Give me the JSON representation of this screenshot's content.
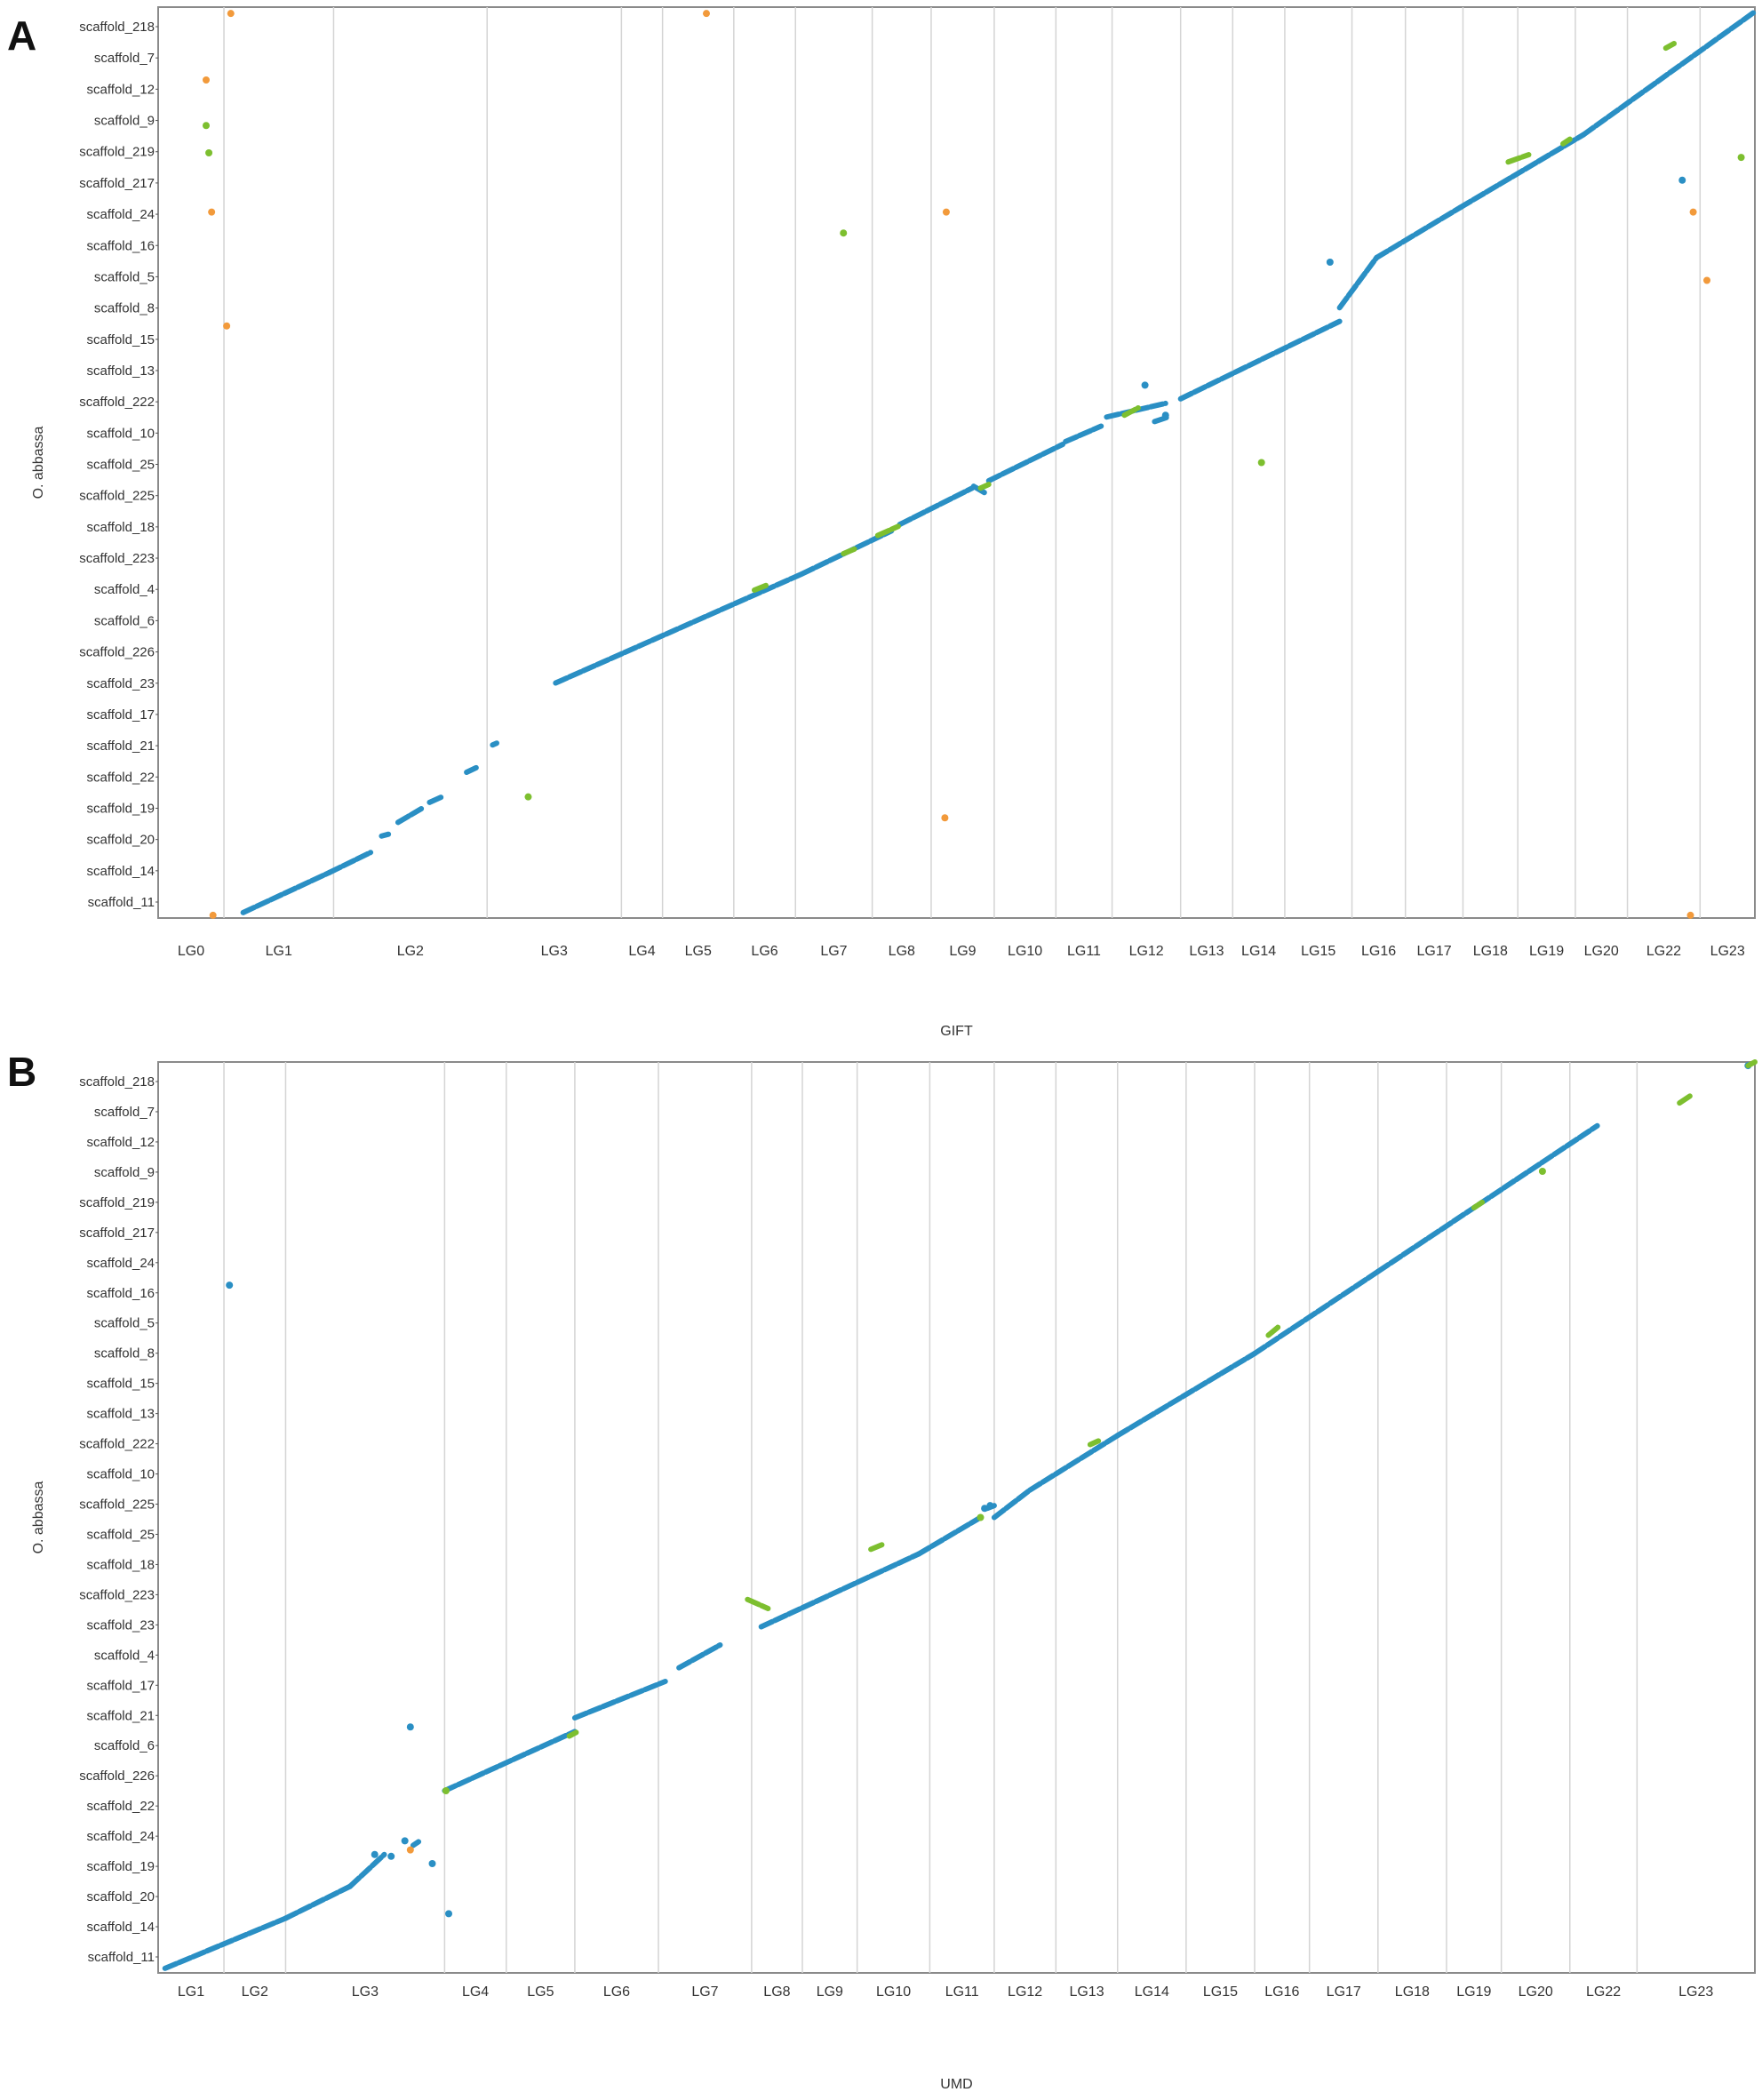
{
  "figure": {
    "panels": [
      {
        "letter": "A",
        "xlabel": "GIFT",
        "ylabel": "O. abbassa",
        "x_ticks": [
          "LG0",
          "LG1",
          "LG2",
          "LG3",
          "LG4",
          "LG5",
          "LG6",
          "LG7",
          "LG8",
          "LG9",
          "LG10",
          "LG11",
          "LG12",
          "LG13",
          "LG14",
          "LG15",
          "LG16",
          "LG17",
          "LG18",
          "LG19",
          "LG20",
          "LG22",
          "LG23"
        ],
        "y_ticks": [
          "scaffold_218",
          "scaffold_7",
          "scaffold_12",
          "scaffold_9",
          "scaffold_219",
          "scaffold_217",
          "scaffold_24",
          "scaffold_16",
          "scaffold_5",
          "scaffold_8",
          "scaffold_15",
          "scaffold_13",
          "scaffold_222",
          "scaffold_10",
          "scaffold_25",
          "scaffold_225",
          "scaffold_18",
          "scaffold_223",
          "scaffold_4",
          "scaffold_6",
          "scaffold_226",
          "scaffold_23",
          "scaffold_17",
          "scaffold_21",
          "scaffold_22",
          "scaffold_19",
          "scaffold_20",
          "scaffold_14",
          "scaffold_11"
        ]
      },
      {
        "letter": "B",
        "xlabel": "UMD",
        "ylabel": "O. abbassa",
        "x_ticks": [
          "LG1",
          "LG2",
          "LG3",
          "LG4",
          "LG5",
          "LG6",
          "LG7",
          "LG8",
          "LG9",
          "LG10",
          "LG11",
          "LG12",
          "LG13",
          "LG14",
          "LG15",
          "LG16",
          "LG17",
          "LG18",
          "LG19",
          "LG20",
          "LG22",
          "LG23"
        ],
        "y_ticks": [
          "scaffold_218",
          "scaffold_7",
          "scaffold_12",
          "scaffold_9",
          "scaffold_219",
          "scaffold_217",
          "scaffold_24",
          "scaffold_16",
          "scaffold_5",
          "scaffold_8",
          "scaffold_15",
          "scaffold_13",
          "scaffold_222",
          "scaffold_10",
          "scaffold_225",
          "scaffold_25",
          "scaffold_18",
          "scaffold_223",
          "scaffold_23",
          "scaffold_4",
          "scaffold_17",
          "scaffold_21",
          "scaffold_6",
          "scaffold_226",
          "scaffold_22",
          "scaffold_24",
          "scaffold_19",
          "scaffold_20",
          "scaffold_14",
          "scaffold_11"
        ]
      }
    ]
  },
  "colors": {
    "main": "#2a8fc4",
    "inverted": "#7dbf2f",
    "outlier": "#f29a3b",
    "grid": "#d4d4d4",
    "frame": "#8a8a8a"
  },
  "chart_data": [
    {
      "type": "scatter",
      "title": "",
      "xlabel": "GIFT",
      "ylabel": "O. abbassa",
      "grid": true,
      "x_categories": [
        "LG0",
        "LG1",
        "LG2",
        "LG3",
        "LG4",
        "LG5",
        "LG6",
        "LG7",
        "LG8",
        "LG9",
        "LG10",
        "LG11",
        "LG12",
        "LG13",
        "LG14",
        "LG15",
        "LG16",
        "LG17",
        "LG18",
        "LG19",
        "LG20",
        "LG22",
        "LG23"
      ],
      "x_boundaries": [
        0,
        0.048,
        0.128,
        0.24,
        0.338,
        0.368,
        0.42,
        0.465,
        0.521,
        0.564,
        0.61,
        0.655,
        0.696,
        0.746,
        0.784,
        0.822,
        0.871,
        0.91,
        0.952,
        0.992,
        1.034,
        1.072,
        1.125,
        1.165
      ],
      "y_categories": [
        "scaffold_218",
        "scaffold_7",
        "scaffold_12",
        "scaffold_9",
        "scaffold_219",
        "scaffold_217",
        "scaffold_24",
        "scaffold_16",
        "scaffold_5",
        "scaffold_8",
        "scaffold_15",
        "scaffold_13",
        "scaffold_222",
        "scaffold_10",
        "scaffold_25",
        "scaffold_225",
        "scaffold_18",
        "scaffold_223",
        "scaffold_4",
        "scaffold_6",
        "scaffold_226",
        "scaffold_23",
        "scaffold_17",
        "scaffold_21",
        "scaffold_22",
        "scaffold_19",
        "scaffold_20",
        "scaffold_14",
        "scaffold_11"
      ],
      "xlim": [
        0,
        1.165
      ],
      "ylim": [
        0,
        1.0
      ],
      "series": [
        {
          "name": "",
          "segments": [
            [
              0.062,
              0.006,
              0.125,
              0.05
            ],
            [
              0.125,
              0.05,
              0.155,
              0.072
            ],
            [
              0.163,
              0.09,
              0.168,
              0.092
            ],
            [
              0.175,
              0.105,
              0.192,
              0.12
            ],
            [
              0.198,
              0.127,
              0.207,
              0.133
            ],
            [
              0.225,
              0.16,
              0.232,
              0.165
            ],
            [
              0.244,
              0.19,
              0.247,
              0.192
            ],
            [
              0.29,
              0.258,
              0.47,
              0.378
            ],
            [
              0.47,
              0.378,
              0.535,
              0.425
            ],
            [
              0.541,
              0.432,
              0.594,
              0.472
            ],
            [
              0.595,
              0.474,
              0.604,
              0.466
            ],
            [
              0.606,
              0.48,
              0.66,
              0.52
            ],
            [
              0.662,
              0.523,
              0.688,
              0.54
            ],
            [
              0.692,
              0.55,
              0.735,
              0.565
            ],
            [
              0.727,
              0.545,
              0.737,
              0.55
            ],
            [
              0.746,
              0.57,
              0.862,
              0.655
            ],
            [
              0.862,
              0.67,
              0.889,
              0.725
            ],
            [
              0.889,
              0.725,
              0.95,
              0.78
            ],
            [
              0.95,
              0.78,
              1.04,
              0.86
            ],
            [
              1.04,
              0.86,
              1.165,
              0.995
            ]
          ],
          "points": [
            [
              0.735,
              0.552
            ],
            [
              0.72,
              0.585
            ],
            [
              0.855,
              0.72
            ],
            [
              1.112,
              0.81
            ]
          ]
        },
        {
          "name": "",
          "segments": [
            [
              0.525,
              0.42,
              0.54,
              0.43
            ],
            [
              0.435,
              0.36,
              0.445,
              0.366
            ],
            [
              0.5,
              0.4,
              0.508,
              0.405
            ],
            [
              0.6,
              0.472,
              0.606,
              0.476
            ],
            [
              0.705,
              0.552,
              0.715,
              0.56
            ],
            [
              0.985,
              0.83,
              1.0,
              0.838
            ],
            [
              1.025,
              0.85,
              1.03,
              0.855
            ],
            [
              1.1,
              0.955,
              1.106,
              0.96
            ]
          ],
          "points": [
            [
              0.037,
              0.84
            ],
            [
              0.035,
              0.87
            ],
            [
              0.27,
              0.133
            ],
            [
              0.5,
              0.752
            ],
            [
              1.155,
              0.835
            ],
            [
              0.805,
              0.5
            ]
          ]
        },
        {
          "name": "",
          "points": [
            [
              0.053,
              0.993
            ],
            [
              0.035,
              0.92
            ],
            [
              0.039,
              0.775
            ],
            [
              0.05,
              0.65
            ],
            [
              0.4,
              0.993
            ],
            [
              0.575,
              0.775
            ],
            [
              0.574,
              0.11
            ],
            [
              1.12,
              0.775
            ],
            [
              1.13,
              0.7
            ],
            [
              0.04,
              0.003
            ],
            [
              1.118,
              0.003
            ]
          ]
        }
      ]
    },
    {
      "type": "scatter",
      "title": "",
      "xlabel": "UMD",
      "ylabel": "O. abbassa",
      "grid": true,
      "x_categories": [
        "LG1",
        "LG2",
        "LG3",
        "LG4",
        "LG5",
        "LG6",
        "LG7",
        "LG8",
        "LG9",
        "LG10",
        "LG11",
        "LG12",
        "LG13",
        "LG14",
        "LG15",
        "LG16",
        "LG17",
        "LG18",
        "LG19",
        "LG20",
        "LG22",
        "LG23"
      ],
      "x_boundaries": [
        0,
        0.048,
        0.093,
        0.209,
        0.254,
        0.304,
        0.365,
        0.433,
        0.47,
        0.51,
        0.563,
        0.61,
        0.655,
        0.7,
        0.75,
        0.8,
        0.84,
        0.89,
        0.94,
        0.98,
        1.03,
        1.079,
        1.165
      ],
      "y_categories": [
        "scaffold_218",
        "scaffold_7",
        "scaffold_12",
        "scaffold_9",
        "scaffold_219",
        "scaffold_217",
        "scaffold_24",
        "scaffold_16",
        "scaffold_5",
        "scaffold_8",
        "scaffold_15",
        "scaffold_13",
        "scaffold_222",
        "scaffold_10",
        "scaffold_225",
        "scaffold_25",
        "scaffold_18",
        "scaffold_223",
        "scaffold_23",
        "scaffold_4",
        "scaffold_17",
        "scaffold_21",
        "scaffold_6",
        "scaffold_226",
        "scaffold_22",
        "scaffold_24",
        "scaffold_19",
        "scaffold_20",
        "scaffold_14",
        "scaffold_11"
      ],
      "xlim": [
        0,
        1.165
      ],
      "ylim": [
        0,
        1.0
      ],
      "series": [
        {
          "name": "",
          "segments": [
            [
              0.005,
              0.005,
              0.093,
              0.06
            ],
            [
              0.093,
              0.06,
              0.14,
              0.095
            ],
            [
              0.14,
              0.095,
              0.165,
              0.13
            ],
            [
              0.186,
              0.14,
              0.19,
              0.144
            ],
            [
              0.209,
              0.2,
              0.304,
              0.265
            ],
            [
              0.304,
              0.28,
              0.37,
              0.32
            ],
            [
              0.38,
              0.335,
              0.41,
              0.36
            ],
            [
              0.44,
              0.38,
              0.555,
              0.46
            ],
            [
              0.555,
              0.46,
              0.6,
              0.5
            ],
            [
              0.605,
              0.51,
              0.61,
              0.513
            ],
            [
              0.61,
              0.5,
              0.636,
              0.53
            ],
            [
              0.636,
              0.53,
              0.7,
              0.59
            ],
            [
              0.7,
              0.59,
              0.8,
              0.68
            ],
            [
              0.8,
              0.68,
              0.89,
              0.77
            ],
            [
              0.89,
              0.77,
              1.05,
              0.93
            ]
          ],
          "points": [
            [
              0.052,
              0.755
            ],
            [
              0.184,
              0.27
            ],
            [
              0.18,
              0.145
            ],
            [
              0.2,
              0.12
            ],
            [
              0.212,
              0.065
            ],
            [
              0.158,
              0.13
            ],
            [
              0.17,
              0.128
            ],
            [
              0.603,
              0.51
            ],
            [
              0.607,
              0.513
            ],
            [
              1.16,
              0.996
            ]
          ]
        },
        {
          "name": "",
          "segments": [
            [
              0.43,
              0.41,
              0.445,
              0.4
            ],
            [
              0.3,
              0.26,
              0.305,
              0.264
            ],
            [
              0.52,
              0.465,
              0.528,
              0.47
            ],
            [
              0.68,
              0.58,
              0.686,
              0.584
            ],
            [
              0.81,
              0.7,
              0.818,
              0.71
            ],
            [
              0.96,
              0.84,
              0.966,
              0.846
            ],
            [
              1.11,
              0.955,
              1.118,
              0.963
            ],
            [
              1.16,
              0.996,
              1.165,
              1.0
            ]
          ],
          "points": [
            [
              0.21,
              0.2
            ],
            [
              0.6,
              0.5
            ],
            [
              1.01,
              0.88
            ]
          ]
        },
        {
          "name": "",
          "points": [
            [
              0.184,
              0.135
            ]
          ]
        }
      ]
    }
  ]
}
